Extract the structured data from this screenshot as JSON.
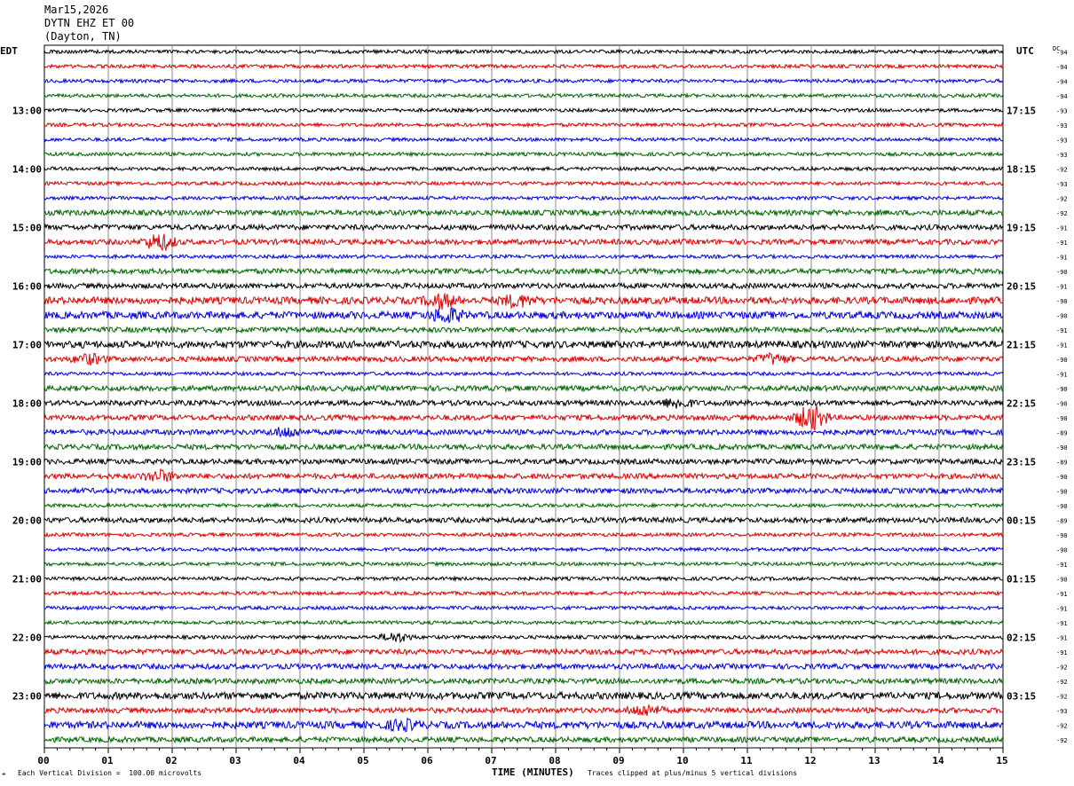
{
  "header": {
    "date": "Mar15,2026",
    "station": "DYTN EHZ ET 00",
    "location": "(Dayton, TN)"
  },
  "labels": {
    "left_tz": "EDT",
    "right_tz": "UTC",
    "dc_header": "DC",
    "xlabel": "TIME (MINUTES)",
    "scale_note": "Each Vertical Division =  100.00 microvolts",
    "clip_note": "Traces clipped at plus/minus 5 vertical divisions",
    "corner_mark": "⌖"
  },
  "colors": {
    "trace_cycle": [
      "#000000",
      "#dd0000",
      "#0000dd",
      "#006600"
    ],
    "grid": "#888888",
    "axis": "#000000"
  },
  "chart_data": {
    "type": "line",
    "title": "",
    "xlabel": "TIME (MINUTES)",
    "x_ticks": [
      "00",
      "01",
      "02",
      "03",
      "04",
      "05",
      "06",
      "07",
      "08",
      "09",
      "10",
      "11",
      "12",
      "13",
      "14",
      "15"
    ],
    "xlim": [
      0,
      15
    ],
    "trace_count": 48,
    "left_hour_labels": [
      "13:00",
      "14:00",
      "15:00",
      "16:00",
      "17:00",
      "18:00",
      "19:00",
      "20:00",
      "21:00",
      "22:00",
      "23:00"
    ],
    "right_hour_labels": [
      "17:15",
      "18:15",
      "19:15",
      "20:15",
      "21:15",
      "22:15",
      "23:15",
      "00:15",
      "01:15",
      "02:15",
      "03:15"
    ],
    "hour_label_first_trace": 4,
    "dc_offsets": [
      -94,
      -94,
      -94,
      -94,
      -93,
      -93,
      -93,
      -93,
      -92,
      -93,
      -92,
      -92,
      -91,
      -91,
      -91,
      -90,
      -91,
      -90,
      -90,
      -91,
      -91,
      -90,
      -91,
      -90,
      -90,
      -90,
      -89,
      -90,
      -89,
      -90,
      -90,
      -90,
      -89,
      -90,
      -90,
      -91,
      -90,
      -91,
      -91,
      -91,
      -91,
      -91,
      -92,
      -92,
      -92,
      -93,
      -92,
      -92
    ],
    "noise_amplitude": [
      2,
      2,
      2,
      2,
      2,
      2,
      2,
      2,
      2,
      2,
      2,
      3,
      3,
      3,
      2,
      3,
      3,
      4,
      4,
      3,
      4,
      3,
      2,
      3,
      3,
      3,
      3,
      3,
      3,
      3,
      3,
      2,
      3,
      2,
      2,
      2,
      2,
      2,
      2,
      2,
      2,
      3,
      3,
      3,
      4,
      3,
      4,
      3
    ],
    "events": [
      {
        "trace": 13,
        "minute": 1.8,
        "amplitude": 9
      },
      {
        "trace": 17,
        "minute": 6.2,
        "amplitude": 7
      },
      {
        "trace": 17,
        "minute": 7.4,
        "amplitude": 6
      },
      {
        "trace": 18,
        "minute": 6.3,
        "amplitude": 8
      },
      {
        "trace": 21,
        "minute": 0.7,
        "amplitude": 5
      },
      {
        "trace": 21,
        "minute": 11.4,
        "amplitude": 5
      },
      {
        "trace": 24,
        "minute": 9.9,
        "amplitude": 5
      },
      {
        "trace": 25,
        "minute": 12.0,
        "amplitude": 14
      },
      {
        "trace": 26,
        "minute": 3.8,
        "amplitude": 5
      },
      {
        "trace": 29,
        "minute": 1.8,
        "amplitude": 6
      },
      {
        "trace": 40,
        "minute": 5.5,
        "amplitude": 5
      },
      {
        "trace": 45,
        "minute": 9.4,
        "amplitude": 6
      },
      {
        "trace": 46,
        "minute": 5.6,
        "amplitude": 5
      }
    ]
  }
}
